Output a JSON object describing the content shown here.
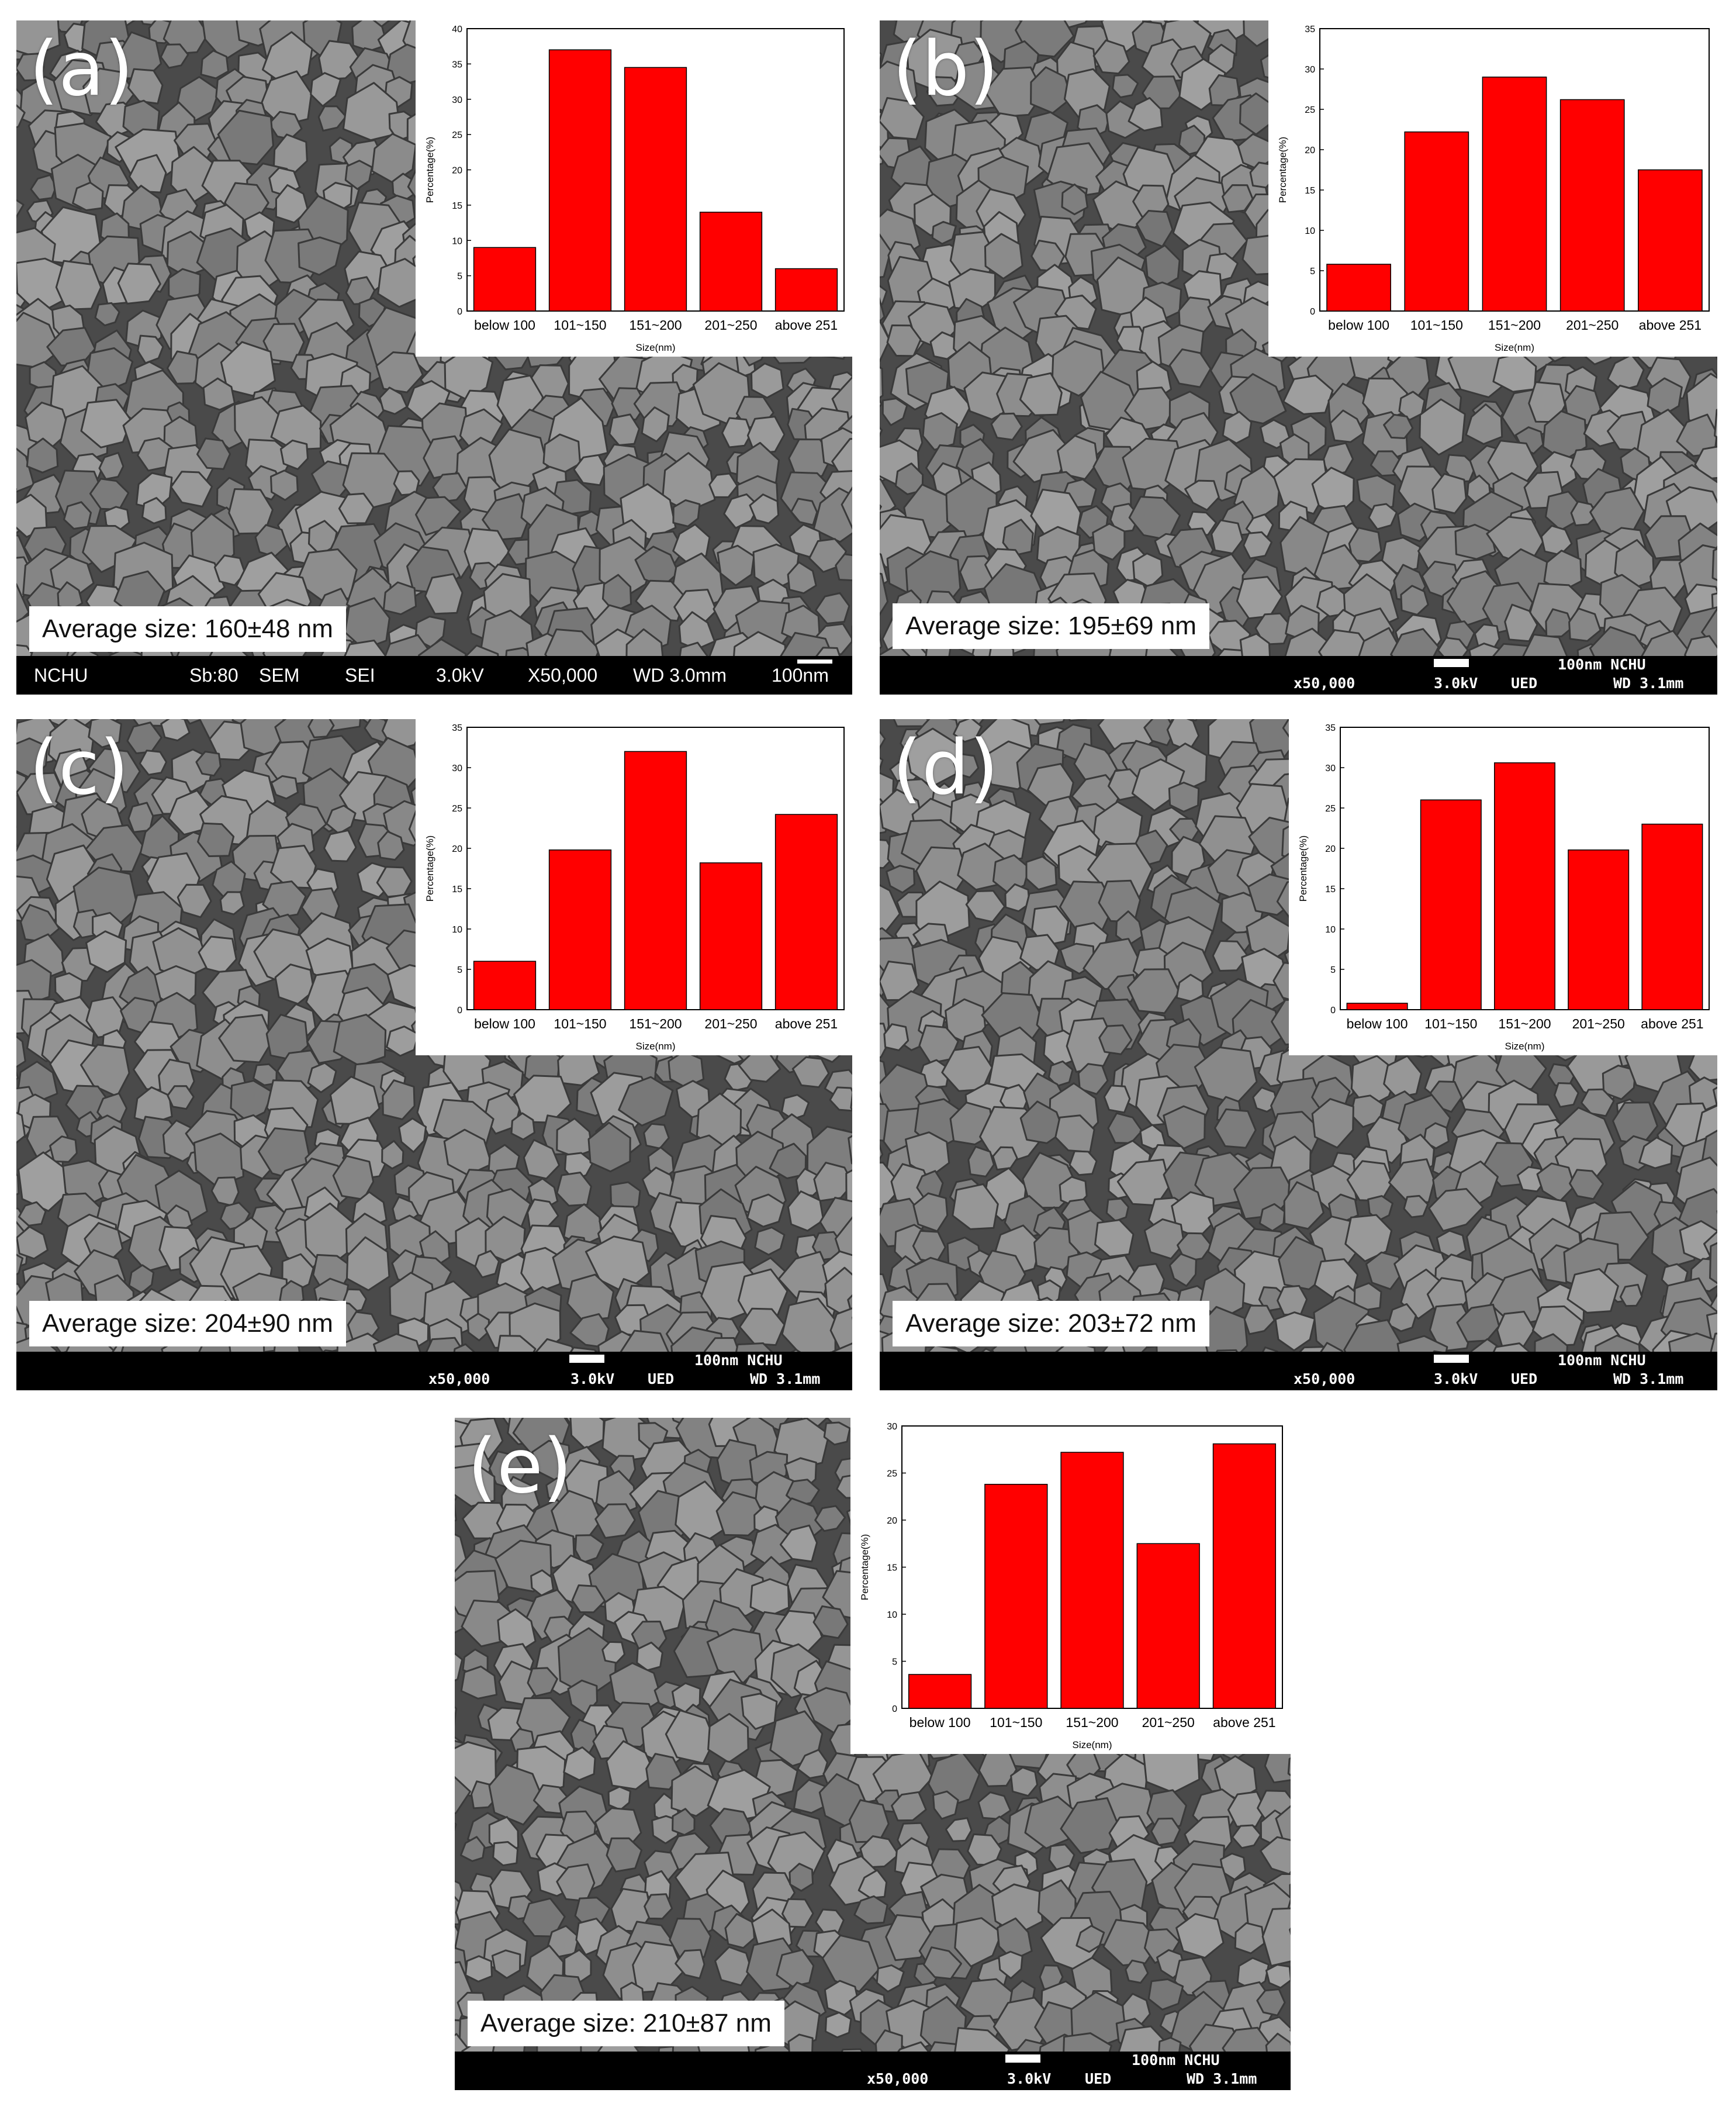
{
  "panels": [
    {
      "label": "(a)",
      "average_size": "Average size: 160±48 nm",
      "infobar": {
        "style": "sans",
        "items": [
          "NCHU",
          "Sb:80",
          "SEM",
          "SEI",
          "3.0kV",
          "X50,000",
          "WD 3.0mm",
          "100nm"
        ]
      }
    },
    {
      "label": "(b)",
      "average_size": "Average size: 195±69 nm",
      "infobar": {
        "style": "mono",
        "scale": "100nm NCHU",
        "magnification": "x50,000",
        "voltage": "3.0kV",
        "detector": "UED",
        "wd": "WD 3.1mm"
      }
    },
    {
      "label": "(c)",
      "average_size": "Average size: 204±90 nm",
      "infobar": {
        "style": "mono",
        "scale": "100nm NCHU",
        "magnification": "x50,000",
        "voltage": "3.0kV",
        "detector": "UED",
        "wd": "WD 3.1mm"
      }
    },
    {
      "label": "(d)",
      "average_size": "Average size: 203±72 nm",
      "infobar": {
        "style": "mono",
        "scale": "100nm NCHU",
        "magnification": "x50,000",
        "voltage": "3.0kV",
        "detector": "UED",
        "wd": "WD 3.1mm"
      }
    },
    {
      "label": "(e)",
      "average_size": "Average size: 210±87 nm",
      "infobar": {
        "style": "mono",
        "scale": "100nm NCHU",
        "magnification": "x50,000",
        "voltage": "3.0kV",
        "detector": "UED",
        "wd": "WD 3.1mm"
      }
    }
  ],
  "chart_data": [
    {
      "panel": "(a)",
      "type": "bar",
      "categories": [
        "below 100",
        "101~150",
        "151~200",
        "201~250",
        "above 251"
      ],
      "values": [
        9,
        37,
        34.5,
        14,
        6
      ],
      "xlabel": "Size(nm)",
      "ylabel": "Percentage(%)",
      "ylim": [
        0,
        40
      ],
      "yticks": [
        0,
        5,
        10,
        15,
        20,
        25,
        30,
        35,
        40
      ],
      "bar_color": "#ff0000"
    },
    {
      "panel": "(b)",
      "type": "bar",
      "categories": [
        "below 100",
        "101~150",
        "151~200",
        "201~250",
        "above 251"
      ],
      "values": [
        5.8,
        22.2,
        29,
        26.2,
        17.5
      ],
      "xlabel": "Size(nm)",
      "ylabel": "Percentage(%)",
      "ylim": [
        0,
        35
      ],
      "yticks": [
        0,
        5,
        10,
        15,
        20,
        25,
        30,
        35
      ],
      "bar_color": "#ff0000"
    },
    {
      "panel": "(c)",
      "type": "bar",
      "categories": [
        "below 100",
        "101~150",
        "151~200",
        "201~250",
        "above 251"
      ],
      "values": [
        6,
        19.8,
        32,
        18.2,
        24.2
      ],
      "xlabel": "Size(nm)",
      "ylabel": "Percentage(%)",
      "ylim": [
        0,
        35
      ],
      "yticks": [
        0,
        5,
        10,
        15,
        20,
        25,
        30,
        35
      ],
      "bar_color": "#ff0000"
    },
    {
      "panel": "(d)",
      "type": "bar",
      "categories": [
        "below 100",
        "101~150",
        "151~200",
        "201~250",
        "above 251"
      ],
      "values": [
        0.8,
        26,
        30.6,
        19.8,
        23
      ],
      "xlabel": "Size(nm)",
      "ylabel": "Percentage(%)",
      "ylim": [
        0,
        35
      ],
      "yticks": [
        0,
        5,
        10,
        15,
        20,
        25,
        30,
        35
      ],
      "bar_color": "#ff0000"
    },
    {
      "panel": "(e)",
      "type": "bar",
      "categories": [
        "below 100",
        "101~150",
        "151~200",
        "201~250",
        "above 251"
      ],
      "values": [
        3.6,
        23.8,
        27.2,
        17.5,
        28.1
      ],
      "xlabel": "Size(nm)",
      "ylabel": "Percentage(%)",
      "ylim": [
        0,
        30
      ],
      "yticks": [
        0,
        5,
        10,
        15,
        20,
        25,
        30
      ],
      "bar_color": "#ff0000"
    }
  ]
}
